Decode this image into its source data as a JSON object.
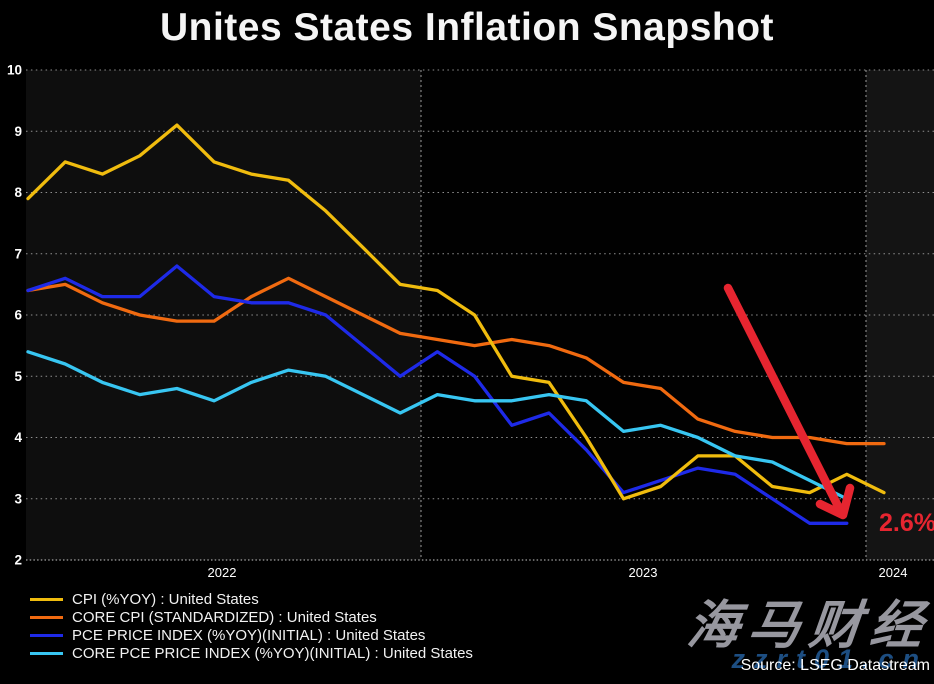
{
  "title": "Unites States Inflation Snapshot",
  "source": "Source: LSEG Datastream",
  "watermark": {
    "brand": "海马财经",
    "url": "zzrt01.cn"
  },
  "chart_data": {
    "type": "line",
    "title": "Unites States Inflation Snapshot",
    "xlabel": "",
    "ylabel": "",
    "ylim": [
      2,
      10
    ],
    "y_ticks": [
      "10",
      "9",
      "8",
      "7",
      "6",
      "5",
      "4",
      "3",
      "2"
    ],
    "x_tick_labels": [
      "2022",
      "2023",
      "2024"
    ],
    "grid": "dotted horizontal gridlines at each integer; dashed vertical lines at year boundaries; subtle alternating year background bands",
    "legend_position": "bottom-left",
    "background": "#000000",
    "categories": [
      "Feb 2022",
      "Mar 2022",
      "Apr 2022",
      "May 2022",
      "Jun 2022",
      "Jul 2022",
      "Aug 2022",
      "Sep 2022",
      "Oct 2022",
      "Nov 2022",
      "Dec 2022",
      "Jan 2023",
      "Feb 2023",
      "Mar 2023",
      "Apr 2023",
      "May 2023",
      "Jun 2023",
      "Jul 2023",
      "Aug 2023",
      "Sep 2023",
      "Oct 2023",
      "Nov 2023",
      "Dec 2023",
      "Jan 2024"
    ],
    "series": [
      {
        "name": "CPI (%YOY) : United States",
        "color": "#f0bc0e",
        "values": [
          7.9,
          8.5,
          8.3,
          8.6,
          9.1,
          8.5,
          8.3,
          8.2,
          7.7,
          7.1,
          6.5,
          6.4,
          6.0,
          5.0,
          4.9,
          4.0,
          3.0,
          3.2,
          3.7,
          3.7,
          3.2,
          3.1,
          3.4,
          3.1
        ]
      },
      {
        "name": "CORE CPI (STANDARDIZED) : United States",
        "color": "#f06a10",
        "values": [
          6.4,
          6.5,
          6.2,
          6.0,
          5.9,
          5.9,
          6.3,
          6.6,
          6.3,
          6.0,
          5.7,
          5.6,
          5.5,
          5.6,
          5.5,
          5.3,
          4.9,
          4.8,
          4.3,
          4.1,
          4.0,
          4.0,
          3.9,
          3.9
        ]
      },
      {
        "name": "PCE PRICE INDEX (%YOY)(INITIAL) : United States",
        "color": "#1e2ae8",
        "values": [
          6.4,
          6.6,
          6.3,
          6.3,
          6.8,
          6.3,
          6.2,
          6.2,
          6.0,
          5.5,
          5.0,
          5.4,
          5.0,
          4.2,
          4.4,
          3.8,
          3.1,
          3.3,
          3.5,
          3.4,
          3.0,
          2.6,
          2.6,
          null
        ]
      },
      {
        "name": "CORE PCE PRICE INDEX (%YOY)(INITIAL) : United States",
        "color": "#38c6f2",
        "values": [
          5.4,
          5.2,
          4.9,
          4.7,
          4.8,
          4.6,
          4.9,
          5.1,
          5.0,
          4.7,
          4.4,
          4.7,
          4.6,
          4.6,
          4.7,
          4.6,
          4.1,
          4.2,
          4.0,
          3.7,
          3.6,
          3.3,
          3.0,
          null
        ]
      }
    ],
    "annotation": {
      "text": "2.6%",
      "color": "#e62530"
    }
  }
}
